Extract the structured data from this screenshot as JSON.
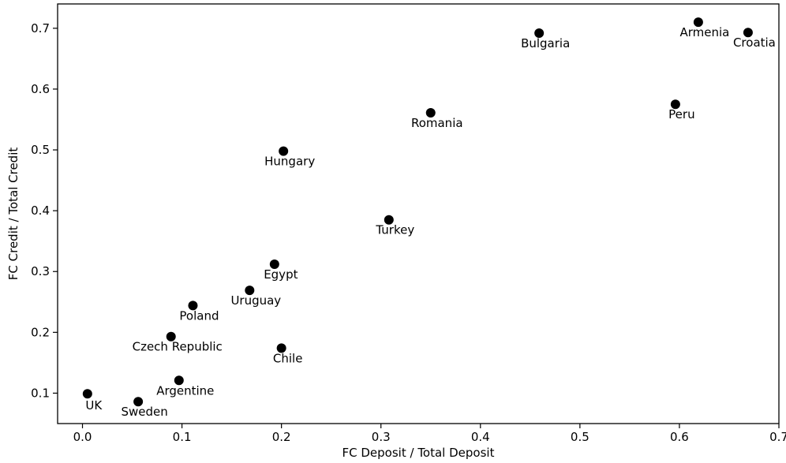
{
  "chart_data": {
    "type": "scatter",
    "title": "",
    "xlabel": "FC Deposit / Total Deposit",
    "ylabel": "FC Credit / Total Credit",
    "xlim": [
      -0.025,
      0.7
    ],
    "ylim": [
      0.05,
      0.74
    ],
    "xticks": [
      0.0,
      0.1,
      0.2,
      0.3,
      0.4,
      0.5,
      0.6,
      0.7
    ],
    "xtick_labels": [
      "0.0",
      "0.1",
      "0.2",
      "0.3",
      "0.4",
      "0.5",
      "0.6",
      "0.7"
    ],
    "yticks": [
      0.1,
      0.2,
      0.3,
      0.4,
      0.5,
      0.6,
      0.7
    ],
    "ytick_labels": [
      "0.1",
      "0.2",
      "0.3",
      "0.4",
      "0.5",
      "0.6",
      "0.7"
    ],
    "grid": false,
    "marker_color": "#000000",
    "points": [
      {
        "label": "UK",
        "x": 0.005,
        "y": 0.099
      },
      {
        "label": "Sweden",
        "x": 0.056,
        "y": 0.086
      },
      {
        "label": "Argentine",
        "x": 0.097,
        "y": 0.121
      },
      {
        "label": "Czech Republic",
        "x": 0.089,
        "y": 0.193
      },
      {
        "label": "Poland",
        "x": 0.111,
        "y": 0.244
      },
      {
        "label": "Uruguay",
        "x": 0.168,
        "y": 0.269
      },
      {
        "label": "Egypt",
        "x": 0.193,
        "y": 0.312
      },
      {
        "label": "Chile",
        "x": 0.2,
        "y": 0.174
      },
      {
        "label": "Hungary",
        "x": 0.202,
        "y": 0.498
      },
      {
        "label": "Turkey",
        "x": 0.308,
        "y": 0.385
      },
      {
        "label": "Romania",
        "x": 0.35,
        "y": 0.561
      },
      {
        "label": "Bulgaria",
        "x": 0.459,
        "y": 0.692
      },
      {
        "label": "Peru",
        "x": 0.596,
        "y": 0.575
      },
      {
        "label": "Armenia",
        "x": 0.619,
        "y": 0.71
      },
      {
        "label": "Croatia",
        "x": 0.669,
        "y": 0.693
      }
    ]
  }
}
